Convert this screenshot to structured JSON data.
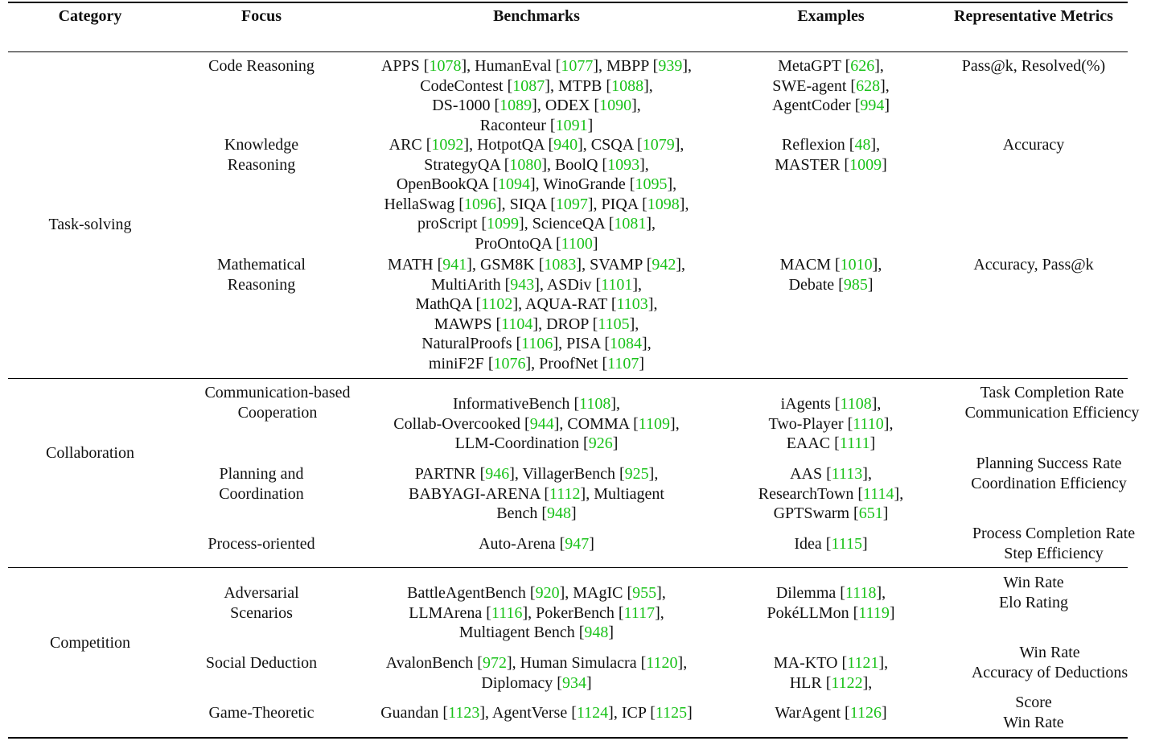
{
  "headers": [
    "Category",
    "Focus",
    "Benchmarks",
    "Examples",
    "Representative Metrics"
  ],
  "sections": [
    {
      "category": "Task-solving",
      "rows": [
        {
          "focus": "Code Reasoning",
          "benchmarks": [
            [
              [
                "APPS ",
                "1078"
              ],
              [
                ", HumanEval ",
                "1077"
              ],
              [
                ", MBPP ",
                "939"
              ],
              [
                ","
              ]
            ],
            [
              [
                "CodeContest ",
                "1087"
              ],
              [
                ", MTPB ",
                "1088"
              ],
              [
                ","
              ]
            ],
            [
              [
                "DS-1000 ",
                "1089"
              ],
              [
                ", ODEX ",
                "1090"
              ],
              [
                ","
              ]
            ],
            [
              [
                "Raconteur ",
                "1091"
              ]
            ]
          ],
          "examples": [
            [
              [
                "MetaGPT ",
                "626"
              ],
              [
                ","
              ]
            ],
            [
              [
                "SWE-agent ",
                "628"
              ],
              [
                ","
              ]
            ],
            [
              [
                "AgentCoder ",
                "994"
              ]
            ]
          ],
          "metrics": [
            "Pass@k, Resolved(%)"
          ]
        },
        {
          "focus": "Knowledge Reasoning",
          "benchmarks": [
            [
              [
                "ARC ",
                "1092"
              ],
              [
                ", HotpotQA ",
                "940"
              ],
              [
                ", CSQA ",
                "1079"
              ],
              [
                ","
              ]
            ],
            [
              [
                "StrategyQA ",
                "1080"
              ],
              [
                ", BoolQ ",
                "1093"
              ],
              [
                ","
              ]
            ],
            [
              [
                "OpenBookQA ",
                "1094"
              ],
              [
                ", WinoGrande ",
                "1095"
              ],
              [
                ","
              ]
            ],
            [
              [
                "HellaSwag ",
                "1096"
              ],
              [
                ", SIQA ",
                "1097"
              ],
              [
                ", PIQA ",
                "1098"
              ],
              [
                ","
              ]
            ],
            [
              [
                "proScript ",
                "1099"
              ],
              [
                ", ScienceQA ",
                "1081"
              ],
              [
                ","
              ]
            ],
            [
              [
                "ProOntoQA ",
                "1100"
              ]
            ]
          ],
          "examples": [
            [
              [
                "Reflexion ",
                "48"
              ],
              [
                ","
              ]
            ],
            [
              [
                "MASTER ",
                "1009"
              ]
            ]
          ],
          "metrics": [
            "Accuracy"
          ]
        },
        {
          "focus": "Mathematical Reasoning",
          "benchmarks": [
            [
              [
                "MATH ",
                "941"
              ],
              [
                ", GSM8K ",
                "1083"
              ],
              [
                ", SVAMP ",
                "942"
              ],
              [
                ","
              ]
            ],
            [
              [
                "MultiArith ",
                "943"
              ],
              [
                ", ASDiv ",
                "1101"
              ],
              [
                ","
              ]
            ],
            [
              [
                "MathQA ",
                "1102"
              ],
              [
                ", AQUA-RAT ",
                "1103"
              ],
              [
                ","
              ]
            ],
            [
              [
                "MAWPS ",
                "1104"
              ],
              [
                ", DROP ",
                "1105"
              ],
              [
                ","
              ]
            ],
            [
              [
                "NaturalProofs ",
                "1106"
              ],
              [
                ", PISA ",
                "1084"
              ],
              [
                ","
              ]
            ],
            [
              [
                "miniF2F ",
                "1076"
              ],
              [
                ", ProofNet ",
                "1107"
              ]
            ]
          ],
          "examples": [
            [
              [
                "MACM ",
                "1010"
              ],
              [
                ","
              ]
            ],
            [
              [
                "Debate ",
                "985"
              ]
            ]
          ],
          "metrics": [
            "Accuracy, Pass@k"
          ]
        }
      ]
    },
    {
      "category": "Collaboration",
      "rows": [
        {
          "focus": "Communication-based Cooperation",
          "benchmarks": [
            [
              [
                "InformativeBench ",
                "1108"
              ],
              [
                ","
              ]
            ],
            [
              [
                "Collab-Overcooked ",
                "944"
              ],
              [
                ", COMMA ",
                "1109"
              ],
              [
                ","
              ]
            ],
            [
              [
                "LLM-Coordination ",
                "926"
              ]
            ]
          ],
          "examples": [
            [
              [
                "iAgents ",
                "1108"
              ],
              [
                ","
              ]
            ],
            [
              [
                "Two-Player ",
                "1110"
              ],
              [
                ","
              ]
            ],
            [
              [
                "EAAC ",
                "1111"
              ]
            ]
          ],
          "metrics": [
            "Task Completion Rate",
            "Communication Efficiency"
          ]
        },
        {
          "focus": "Planning and Coordination",
          "benchmarks": [
            [
              [
                "PARTNR ",
                "946"
              ],
              [
                ", VillagerBench ",
                "925"
              ],
              [
                ","
              ]
            ],
            [
              [
                "BABYAGI-ARENA ",
                "1112"
              ],
              [
                ", Multiagent"
              ]
            ],
            [
              [
                "Bench ",
                "948"
              ]
            ]
          ],
          "examples": [
            [
              [
                "AAS ",
                "1113"
              ],
              [
                ","
              ]
            ],
            [
              [
                "ResearchTown ",
                "1114"
              ],
              [
                ","
              ]
            ],
            [
              [
                "GPTSwarm ",
                "651"
              ]
            ]
          ],
          "metrics": [
            "Planning Success Rate",
            "Coordination Efficiency"
          ]
        },
        {
          "focus": "Process-oriented",
          "benchmarks": [
            [
              [
                "Auto-Arena ",
                "947"
              ]
            ]
          ],
          "examples": [
            [
              [
                "Idea ",
                "1115"
              ]
            ]
          ],
          "metrics": [
            "Process Completion Rate",
            "Step Efficiency"
          ]
        }
      ]
    },
    {
      "category": "Competition",
      "rows": [
        {
          "focus": "Adversarial Scenarios",
          "benchmarks": [
            [
              [
                "BattleAgentBench ",
                "920"
              ],
              [
                ", MAgIC ",
                "955"
              ],
              [
                ","
              ]
            ],
            [
              [
                "LLMArena ",
                "1116"
              ],
              [
                ", PokerBench ",
                "1117"
              ],
              [
                ","
              ]
            ],
            [
              [
                "Multiagent Bench ",
                "948"
              ]
            ]
          ],
          "examples": [
            [
              [
                "Dilemma ",
                "1118"
              ],
              [
                ","
              ]
            ],
            [
              [
                "PokéLLMon ",
                "1119"
              ]
            ]
          ],
          "metrics": [
            "Win Rate",
            "Elo Rating"
          ]
        },
        {
          "focus": "Social Deduction",
          "benchmarks": [
            [
              [
                "AvalonBench ",
                "972"
              ],
              [
                ", Human Simulacra ",
                "1120"
              ],
              [
                ","
              ]
            ],
            [
              [
                "Diplomacy ",
                "934"
              ]
            ]
          ],
          "examples": [
            [
              [
                "MA-KTO ",
                "1121"
              ],
              [
                ","
              ]
            ],
            [
              [
                "HLR ",
                "1122"
              ],
              [
                ","
              ]
            ]
          ],
          "metrics": [
            "Win Rate",
            "Accuracy of Deductions"
          ]
        },
        {
          "focus": "Game-Theoretic",
          "benchmarks": [
            [
              [
                "Guandan ",
                "1123"
              ],
              [
                ", AgentVerse ",
                "1124"
              ],
              [
                ", ICP ",
                "1125"
              ]
            ]
          ],
          "examples": [
            [
              [
                "WarAgent ",
                "1126"
              ]
            ]
          ],
          "metrics": [
            "Score",
            "Win Rate"
          ]
        }
      ]
    }
  ]
}
